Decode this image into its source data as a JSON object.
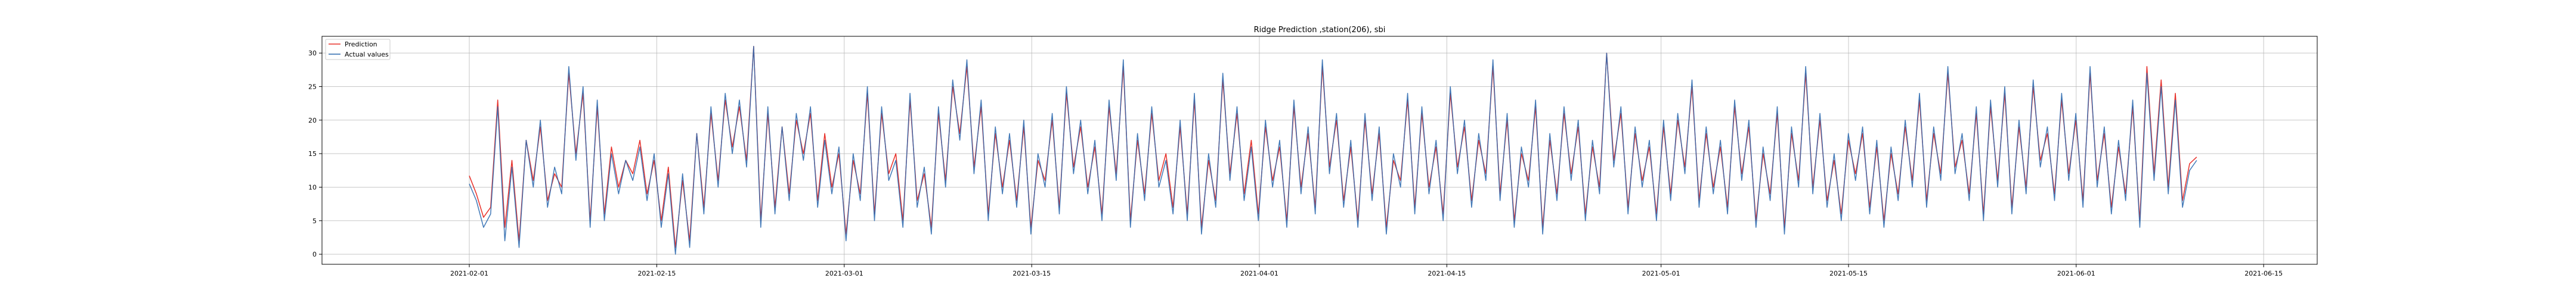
{
  "chart_data": {
    "type": "line",
    "title": "Ridge Prediction ,station(206), sbi",
    "xlabel": "",
    "ylabel": "",
    "x_range": [
      "2021-01-21",
      "2021-06-19"
    ],
    "data_range": [
      "2021-02-01",
      "2021-06-10"
    ],
    "ylim": [
      -1.5,
      32.5
    ],
    "y_ticks": [
      0,
      5,
      10,
      15,
      20,
      25,
      30
    ],
    "x_ticks": [
      "2021-02-01",
      "2021-02-15",
      "2021-03-01",
      "2021-03-15",
      "2021-04-01",
      "2021-04-15",
      "2021-05-01",
      "2021-05-15",
      "2021-06-01",
      "2021-06-15"
    ],
    "grid": true,
    "legend_position": "top-left",
    "series": [
      {
        "name": "Prediction",
        "color": "#e8302a",
        "values": [
          11.7,
          9,
          5.5,
          7,
          23,
          4,
          14,
          2,
          17,
          11,
          19,
          8,
          12,
          10,
          27,
          15,
          24,
          5,
          22,
          6,
          16,
          10,
          14,
          12,
          17,
          9,
          14,
          5,
          13,
          1,
          11,
          2,
          18,
          7,
          21,
          11,
          23,
          16,
          22,
          14,
          31,
          5,
          21,
          7,
          19,
          9,
          20,
          15,
          21,
          8,
          18,
          10,
          15,
          3,
          14,
          9,
          24,
          6,
          21,
          12,
          15,
          5,
          23,
          8,
          12,
          4,
          21,
          11,
          25,
          18,
          28,
          13,
          22,
          6,
          18,
          10,
          17,
          8,
          19,
          4,
          14,
          11,
          20,
          7,
          24,
          13,
          19,
          10,
          16,
          6,
          22,
          12,
          28,
          5,
          17,
          9,
          21,
          11,
          15,
          7,
          19,
          6,
          23,
          4,
          14,
          8,
          26,
          12,
          21,
          9,
          17,
          6,
          19,
          11,
          16,
          5,
          22,
          10,
          18,
          7,
          28,
          13,
          20,
          8,
          16,
          5,
          20,
          9,
          18,
          4,
          14,
          11,
          23,
          7,
          21,
          10,
          16,
          6,
          24,
          13,
          19,
          8,
          17,
          12,
          28,
          9,
          20,
          5,
          15,
          11,
          22,
          4,
          17,
          9,
          21,
          12,
          19,
          6,
          16,
          10,
          30,
          14,
          21,
          7,
          18,
          11,
          16,
          6,
          19,
          9,
          20,
          13,
          25,
          8,
          18,
          10,
          16,
          7,
          22,
          12,
          19,
          5,
          15,
          9,
          21,
          4,
          18,
          11,
          27,
          10,
          20,
          8,
          14,
          6,
          17,
          12,
          18,
          7,
          16,
          5,
          15,
          9,
          19,
          11,
          23,
          8,
          18,
          12,
          27,
          13,
          17,
          9,
          21,
          6,
          22,
          11,
          24,
          7,
          19,
          10,
          25,
          14,
          18,
          9,
          23,
          12,
          20,
          8,
          27,
          11,
          18,
          7,
          16,
          9,
          22,
          5,
          28,
          12,
          26,
          10,
          24,
          8,
          13.5,
          14.5
        ]
      },
      {
        "name": "Actual values",
        "color": "#2f6bb0",
        "values": [
          10.5,
          8,
          4,
          6,
          22,
          2,
          13,
          1,
          17,
          10,
          20,
          7,
          13,
          9,
          28,
          14,
          25,
          4,
          23,
          5,
          15,
          9,
          14,
          11,
          16,
          8,
          15,
          4,
          12,
          0,
          12,
          1,
          18,
          6,
          22,
          10,
          24,
          15,
          23,
          13,
          31,
          4,
          22,
          6,
          19,
          8,
          21,
          14,
          22,
          7,
          17,
          9,
          16,
          2,
          15,
          8,
          25,
          5,
          22,
          11,
          14,
          4,
          24,
          7,
          13,
          3,
          22,
          10,
          26,
          17,
          29,
          12,
          23,
          5,
          19,
          9,
          18,
          7,
          20,
          3,
          15,
          10,
          21,
          6,
          25,
          12,
          20,
          9,
          17,
          5,
          23,
          11,
          29,
          4,
          18,
          8,
          22,
          10,
          14,
          6,
          20,
          5,
          24,
          3,
          15,
          7,
          27,
          11,
          22,
          8,
          16,
          5,
          20,
          10,
          17,
          4,
          23,
          9,
          19,
          6,
          29,
          12,
          21,
          7,
          17,
          4,
          21,
          8,
          19,
          3,
          15,
          10,
          24,
          6,
          22,
          9,
          17,
          5,
          25,
          12,
          20,
          7,
          18,
          11,
          29,
          8,
          21,
          4,
          16,
          10,
          23,
          3,
          18,
          8,
          22,
          11,
          20,
          5,
          17,
          9,
          30,
          13,
          22,
          6,
          19,
          10,
          17,
          5,
          20,
          8,
          21,
          12,
          26,
          7,
          19,
          9,
          17,
          6,
          23,
          11,
          20,
          4,
          16,
          8,
          22,
          3,
          19,
          10,
          28,
          9,
          21,
          7,
          15,
          5,
          18,
          11,
          19,
          6,
          17,
          4,
          16,
          8,
          20,
          10,
          24,
          7,
          19,
          11,
          28,
          12,
          18,
          8,
          22,
          5,
          23,
          10,
          25,
          6,
          20,
          9,
          26,
          13,
          19,
          8,
          24,
          11,
          21,
          7,
          28,
          10,
          19,
          6,
          17,
          8,
          23,
          4,
          27,
          11,
          25,
          9,
          23,
          7,
          12.5,
          14
        ]
      }
    ]
  }
}
